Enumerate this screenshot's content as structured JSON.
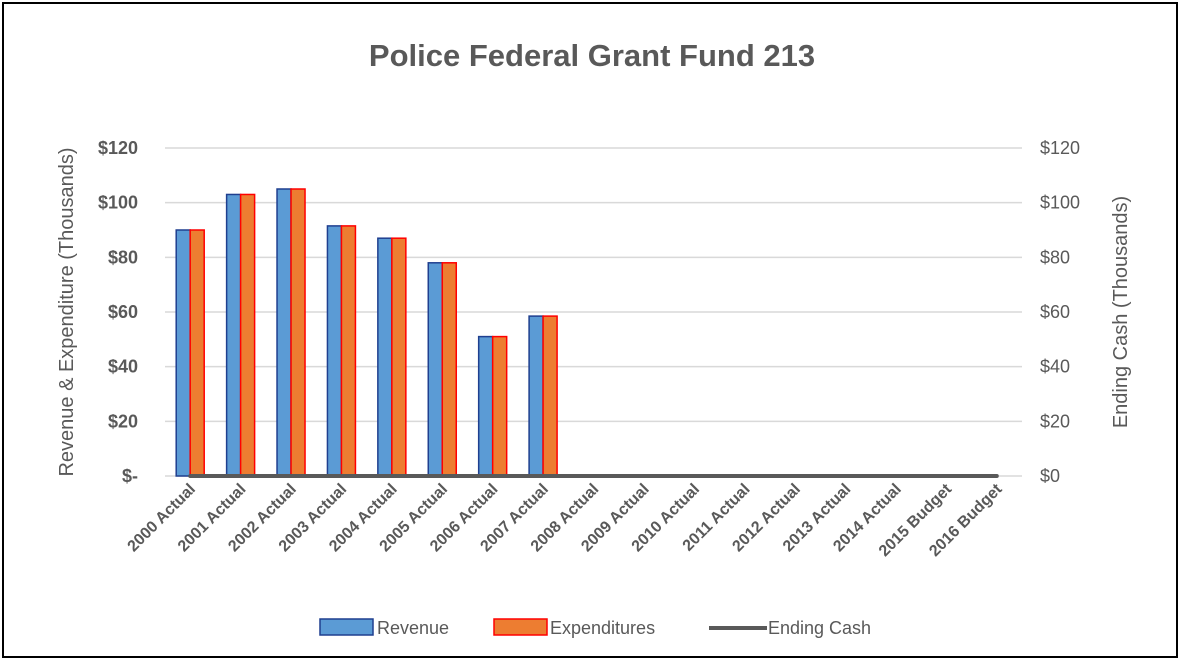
{
  "chart_data": {
    "type": "bar",
    "title": "Police Federal Grant Fund 213",
    "ylabel": "Revenue & Expenditure (Thousands)",
    "y2label": "Ending Cash (Thousands)",
    "categories": [
      "2000 Actual",
      "2001 Actual",
      "2002 Actual",
      "2003 Actual",
      "2004 Actual",
      "2005 Actual",
      "2006 Actual",
      "2007 Actual",
      "2008 Actual",
      "2009 Actual",
      "2010 Actual",
      "2011 Actual",
      "2012 Actual",
      "2013 Actual",
      "2014 Actual",
      "2015 Budget",
      "2016 Budget"
    ],
    "ylim": [
      0,
      120
    ],
    "y2lim": [
      0,
      120
    ],
    "yticks": [
      0,
      20,
      40,
      60,
      80,
      100,
      120
    ],
    "ytick_labels_left": [
      "$-",
      "$20",
      "$40",
      "$60",
      "$80",
      "$100",
      "$120"
    ],
    "ytick_labels_right": [
      "$0",
      "$20",
      "$40",
      "$60",
      "$80",
      "$100",
      "$120"
    ],
    "grid": true,
    "legend_position": "bottom",
    "series": [
      {
        "name": "Revenue",
        "kind": "bar",
        "axis": "left",
        "color": "#5B9BD5",
        "edge": "#1F3F8F",
        "values": [
          90,
          103,
          105,
          91.5,
          87,
          78,
          51,
          58.5,
          0,
          0,
          0,
          0,
          0,
          0,
          0,
          0,
          0
        ]
      },
      {
        "name": "Expenditures",
        "kind": "bar",
        "axis": "left",
        "color": "#ED7D31",
        "edge": "#FF0000",
        "values": [
          90,
          103,
          105,
          91.5,
          87,
          78,
          51,
          58.5,
          0,
          0,
          0,
          0,
          0,
          0,
          0,
          0,
          0
        ]
      },
      {
        "name": "Ending Cash",
        "kind": "line",
        "axis": "right",
        "color": "#595959",
        "values": [
          0,
          0,
          0,
          0,
          0,
          0,
          0,
          0,
          0,
          0,
          0,
          0,
          0,
          0,
          0,
          0,
          0
        ]
      }
    ]
  }
}
